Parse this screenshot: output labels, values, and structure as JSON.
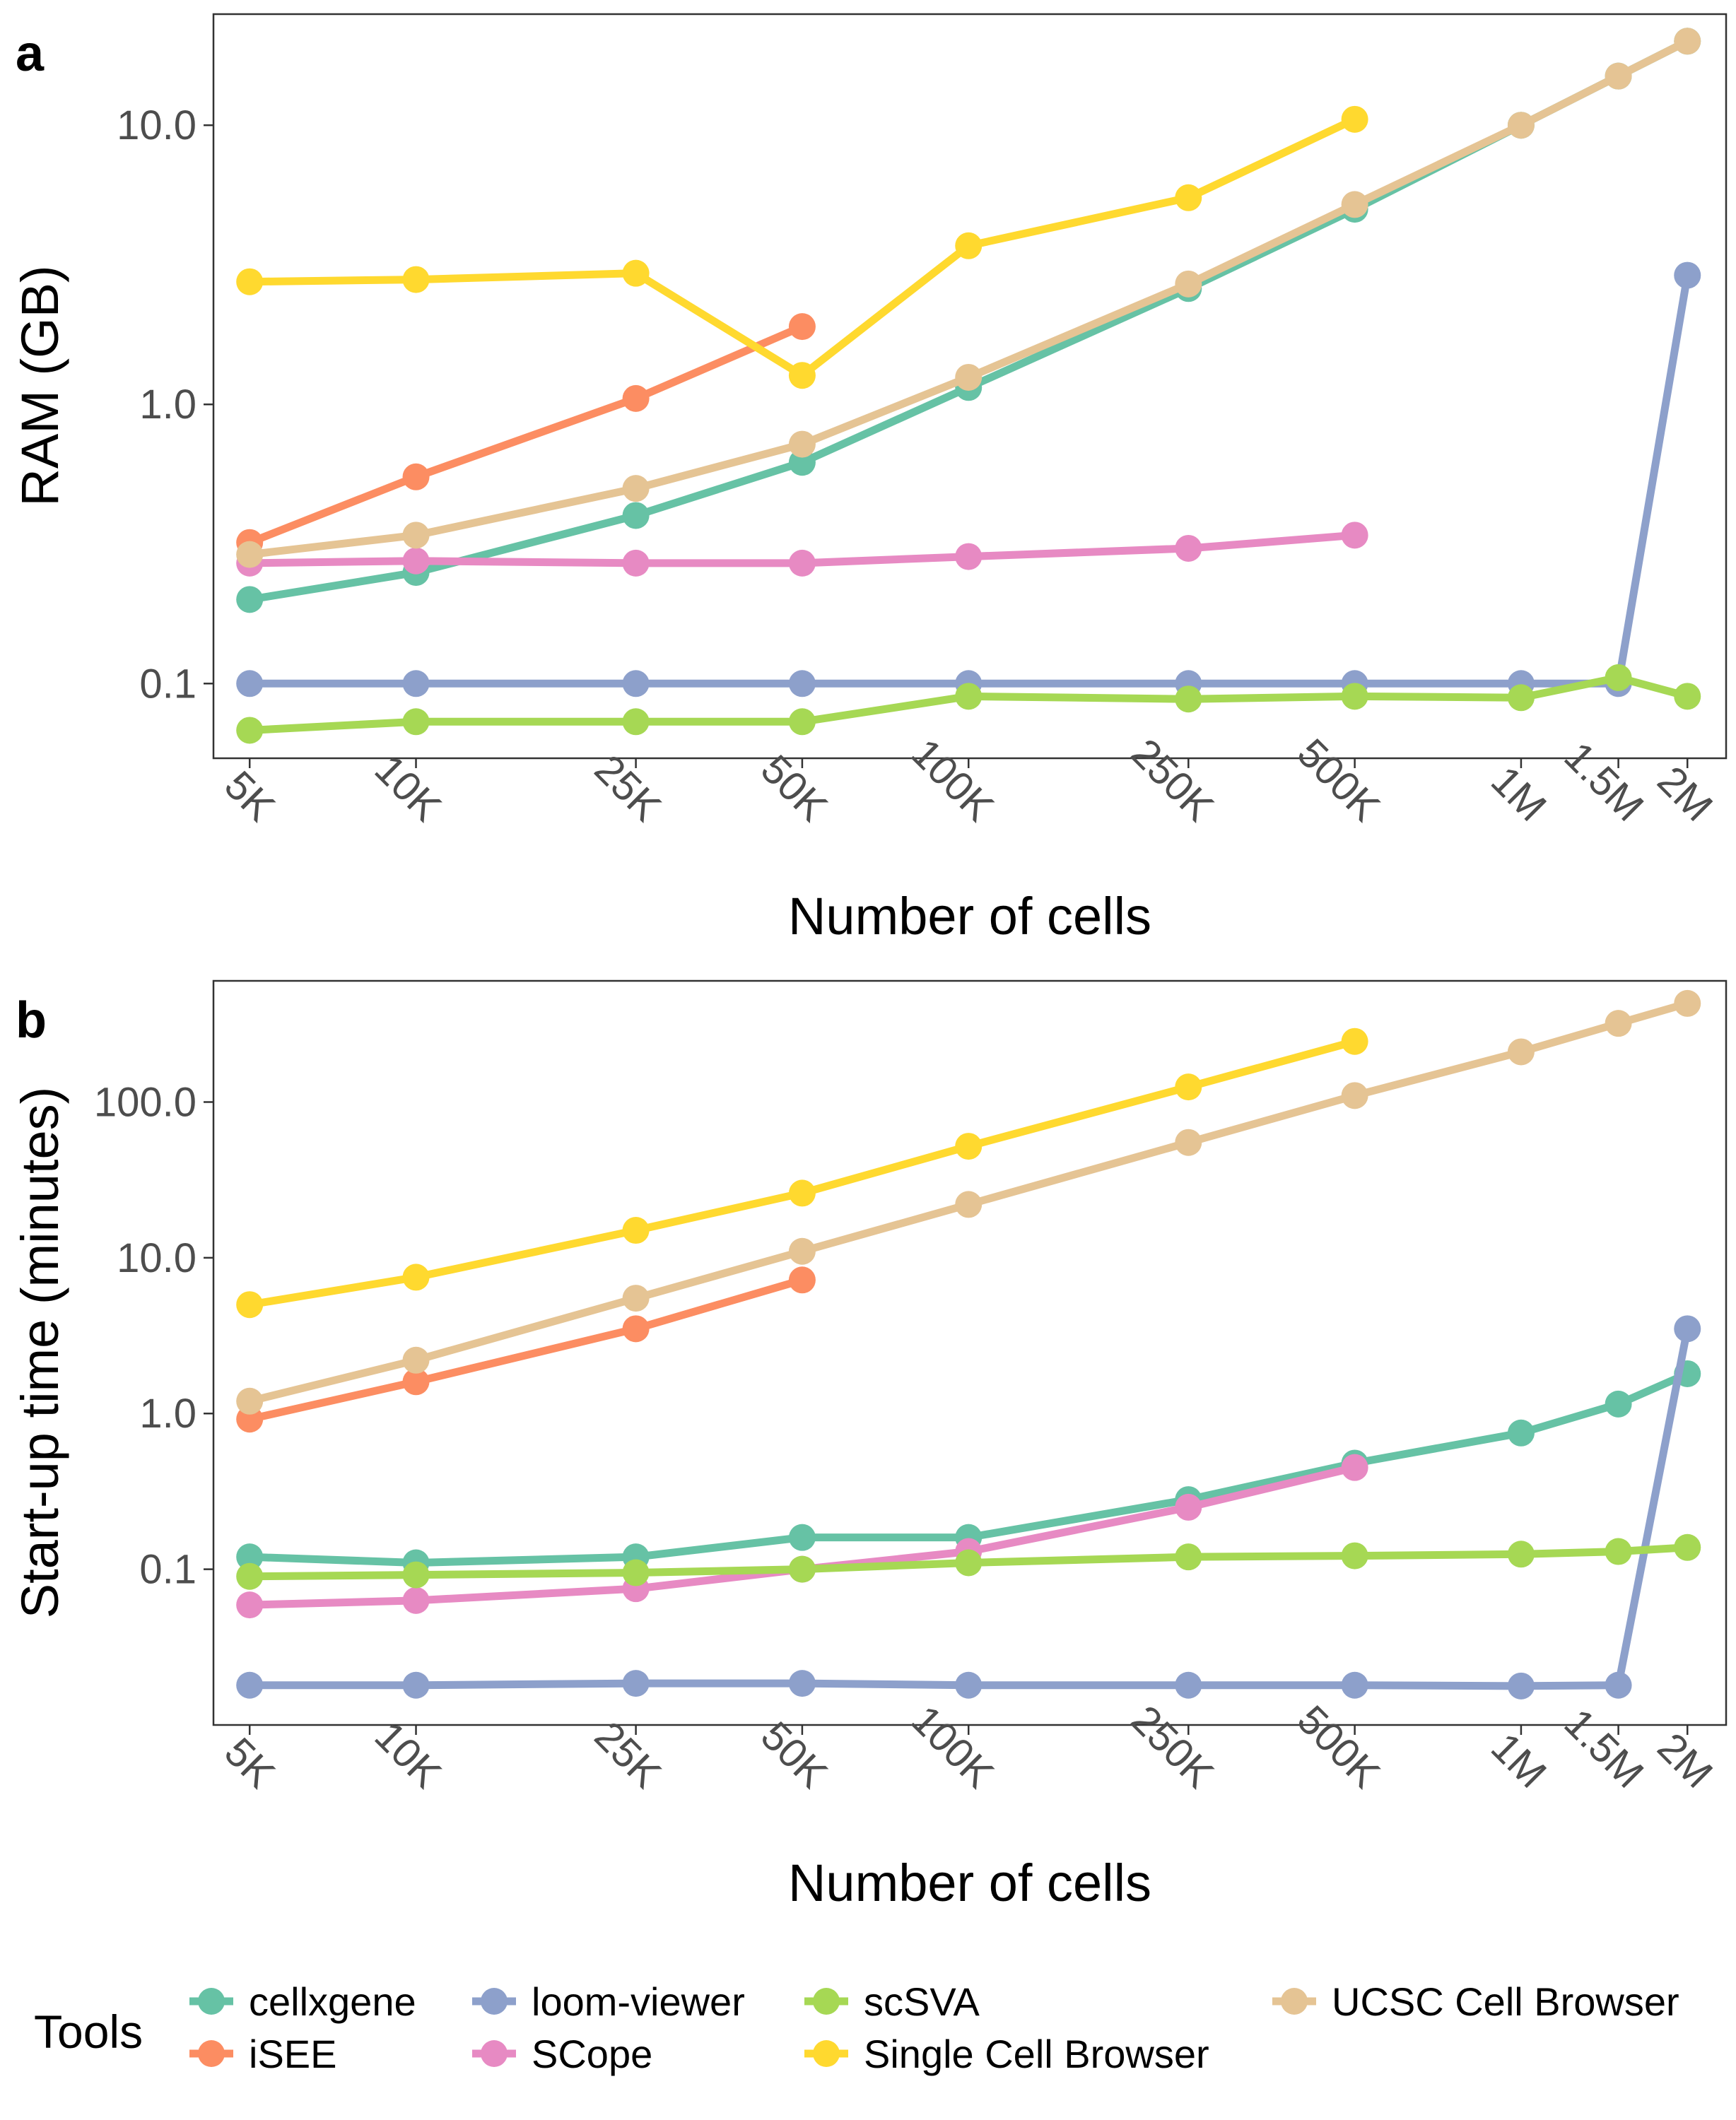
{
  "chart_data": [
    {
      "type": "line",
      "panel_label": "a",
      "xlabel": "Number of cells",
      "ylabel": "RAM (GB)",
      "y_scale": "log10",
      "x_scale": "log10",
      "ylim": [
        0.054,
        25
      ],
      "xlim": [
        4300,
        2350000
      ],
      "grid": false,
      "x": [
        5000,
        10000,
        25000,
        50000,
        100000,
        250000,
        500000,
        1000000,
        1500000,
        2000000
      ],
      "x_tick_labels": [
        "5K",
        "10K",
        "25K",
        "50K",
        "100K",
        "250K",
        "500K",
        "1M",
        "1.5M",
        "2M"
      ],
      "y_ticks": [
        0.1,
        1.0,
        10.0
      ],
      "y_tick_labels": [
        "0.1",
        "1.0",
        "10.0"
      ],
      "series": [
        {
          "name": "cellxgene",
          "color": "#66c2a5",
          "values": [
            0.2,
            0.25,
            0.4,
            0.62,
            1.15,
            2.6,
            5.0,
            10.0,
            15.0,
            20.0
          ]
        },
        {
          "name": "iSEE",
          "color": "#fc8d62",
          "values": [
            0.32,
            0.55,
            1.05,
            1.9,
            null,
            null,
            null,
            null,
            null,
            null
          ]
        },
        {
          "name": "loom-viewer",
          "color": "#8da0cb",
          "values": [
            0.1,
            0.1,
            0.1,
            0.1,
            0.1,
            0.1,
            0.1,
            0.1,
            0.1,
            2.9
          ]
        },
        {
          "name": "SCope",
          "color": "#e78ac3",
          "values": [
            0.27,
            0.275,
            0.27,
            0.27,
            0.285,
            0.305,
            0.34,
            null,
            null,
            null
          ]
        },
        {
          "name": "scSVA",
          "color": "#a6d854",
          "values": [
            0.068,
            0.073,
            0.073,
            0.073,
            0.09,
            0.088,
            0.09,
            0.089,
            0.105,
            0.09
          ]
        },
        {
          "name": "Single Cell Browser",
          "color": "#ffd92f",
          "values": [
            2.75,
            2.8,
            2.95,
            1.27,
            3.7,
            5.5,
            10.5,
            null,
            null,
            null
          ]
        },
        {
          "name": "UCSC Cell Browser",
          "color": "#e5c494",
          "values": [
            0.29,
            0.34,
            0.5,
            0.72,
            1.25,
            2.7,
            5.2,
            10.0,
            15.0,
            20.0
          ]
        }
      ]
    },
    {
      "type": "line",
      "panel_label": "b",
      "xlabel": "Number of cells",
      "ylabel": "Start-up time (minutes)",
      "y_scale": "log10",
      "x_scale": "log10",
      "ylim": [
        0.01,
        600
      ],
      "xlim": [
        4300,
        2350000
      ],
      "grid": false,
      "x": [
        5000,
        10000,
        25000,
        50000,
        100000,
        250000,
        500000,
        1000000,
        1500000,
        2000000
      ],
      "x_tick_labels": [
        "5K",
        "10K",
        "25K",
        "50K",
        "100K",
        "250K",
        "500K",
        "1M",
        "1.5M",
        "2M"
      ],
      "y_ticks": [
        0.1,
        1.0,
        10.0,
        100.0
      ],
      "y_tick_labels": [
        "0.1",
        "1.0",
        "10.0",
        "100.0"
      ],
      "series": [
        {
          "name": "cellxgene",
          "color": "#66c2a5",
          "values": [
            0.12,
            0.11,
            0.12,
            0.16,
            0.16,
            0.28,
            0.48,
            0.75,
            1.15,
            1.8
          ]
        },
        {
          "name": "iSEE",
          "color": "#fc8d62",
          "values": [
            0.92,
            1.6,
            3.5,
            7.2,
            null,
            null,
            null,
            null,
            null,
            null
          ]
        },
        {
          "name": "loom-viewer",
          "color": "#8da0cb",
          "values": [
            0.018,
            0.018,
            0.0185,
            0.0185,
            0.018,
            0.018,
            0.018,
            0.0178,
            0.018,
            3.5
          ]
        },
        {
          "name": "SCope",
          "color": "#e78ac3",
          "values": [
            0.059,
            0.063,
            0.075,
            0.1,
            0.13,
            0.25,
            0.45,
            null,
            null,
            null
          ]
        },
        {
          "name": "scSVA",
          "color": "#a6d854",
          "values": [
            0.09,
            0.092,
            0.095,
            0.1,
            0.11,
            0.12,
            0.122,
            0.125,
            0.13,
            0.138
          ]
        },
        {
          "name": "Single Cell Browser",
          "color": "#ffd92f",
          "values": [
            5.0,
            7.5,
            15.0,
            26.0,
            52.0,
            125.0,
            245.0,
            null,
            null,
            null
          ]
        },
        {
          "name": "UCSC Cell Browser",
          "color": "#e5c494",
          "values": [
            1.2,
            2.2,
            5.5,
            11.0,
            22.0,
            55.0,
            110.0,
            210.0,
            320.0,
            430.0
          ]
        }
      ]
    }
  ],
  "legend": {
    "title": "Tools",
    "items": [
      "cellxgene",
      "iSEE",
      "loom-viewer",
      "SCope",
      "scSVA",
      "Single Cell Browser",
      "UCSC Cell Browser"
    ],
    "colors": [
      "#66c2a5",
      "#fc8d62",
      "#8da0cb",
      "#e78ac3",
      "#a6d854",
      "#ffd92f",
      "#e5c494"
    ]
  }
}
